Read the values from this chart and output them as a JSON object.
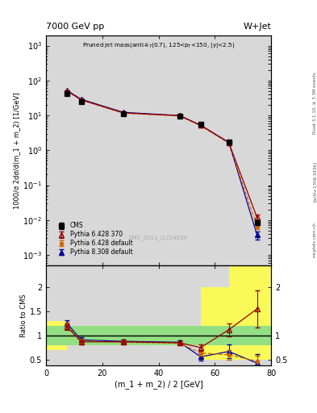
{
  "title_top": "7000 GeV pp",
  "title_right": "W+Jet",
  "cms_label": "CMS_2013_I1224539",
  "xlabel": "(m_1 + m_2) / 2 [GeV]",
  "ylabel_main": "1000/σ 2dσ/d(m_1 + m_2) [1/GeV]",
  "ylabel_ratio": "Ratio to CMS",
  "xdata": [
    7.5,
    12.5,
    27.5,
    47.5,
    55.0,
    65.0,
    75.0
  ],
  "cms_y": [
    42.0,
    25.0,
    11.0,
    9.5,
    5.5,
    1.7,
    0.0085
  ],
  "cms_yerr": [
    2.0,
    1.5,
    0.6,
    0.6,
    0.3,
    0.1,
    0.0008
  ],
  "py6_370_y": [
    50.0,
    28.0,
    11.8,
    9.8,
    5.2,
    1.65,
    0.012
  ],
  "py6_370_yerr": [
    1.5,
    1.0,
    0.4,
    0.4,
    0.2,
    0.08,
    0.002
  ],
  "py6_def_y": [
    50.0,
    27.5,
    11.5,
    9.6,
    5.0,
    1.6,
    0.0065
  ],
  "py6_def_yerr": [
    1.5,
    1.0,
    0.4,
    0.4,
    0.2,
    0.08,
    0.001
  ],
  "py8_def_y": [
    52.0,
    29.0,
    12.2,
    9.9,
    5.2,
    1.68,
    0.0038
  ],
  "py8_def_yerr": [
    1.5,
    1.0,
    0.4,
    0.4,
    0.2,
    0.08,
    0.001
  ],
  "ratio_py6_370": [
    1.18,
    0.87,
    0.87,
    0.85,
    0.75,
    1.12,
    1.55
  ],
  "ratio_py6_370_err": [
    0.06,
    0.05,
    0.04,
    0.04,
    0.06,
    0.13,
    0.38
  ],
  "ratio_py6_def": [
    1.2,
    0.89,
    0.86,
    0.84,
    0.64,
    0.6,
    0.47
  ],
  "ratio_py6_def_err": [
    0.06,
    0.05,
    0.04,
    0.04,
    0.06,
    0.1,
    0.12
  ],
  "ratio_py8_def": [
    1.25,
    0.91,
    0.88,
    0.86,
    0.56,
    0.67,
    0.43
  ],
  "ratio_py8_def_err": [
    0.06,
    0.05,
    0.04,
    0.04,
    0.08,
    0.14,
    0.18
  ],
  "band_regions": [
    [
      0,
      7.5,
      0.8,
      1.2,
      0.7,
      1.3
    ],
    [
      7.5,
      12.5,
      0.8,
      1.2,
      0.8,
      1.2
    ],
    [
      12.5,
      27.5,
      0.8,
      1.2,
      0.8,
      1.2
    ],
    [
      27.5,
      47.5,
      0.8,
      1.2,
      0.8,
      1.2
    ],
    [
      47.5,
      55.0,
      0.8,
      1.2,
      0.8,
      1.2
    ],
    [
      55.0,
      65.0,
      0.8,
      1.2,
      0.5,
      2.0
    ],
    [
      65.0,
      80.0,
      0.8,
      1.2,
      0.5,
      2.5
    ]
  ],
  "color_cms": "#000000",
  "color_py6_370": "#990000",
  "color_py6_def": "#cc6600",
  "color_py8_def": "#000099",
  "xlim": [
    0,
    80
  ],
  "ylim_main": [
    0.0005,
    2000.0
  ],
  "ylim_ratio": [
    0.38,
    2.45
  ],
  "background_color": "#ffffff",
  "plot_bg_color": "#d8d8d8"
}
